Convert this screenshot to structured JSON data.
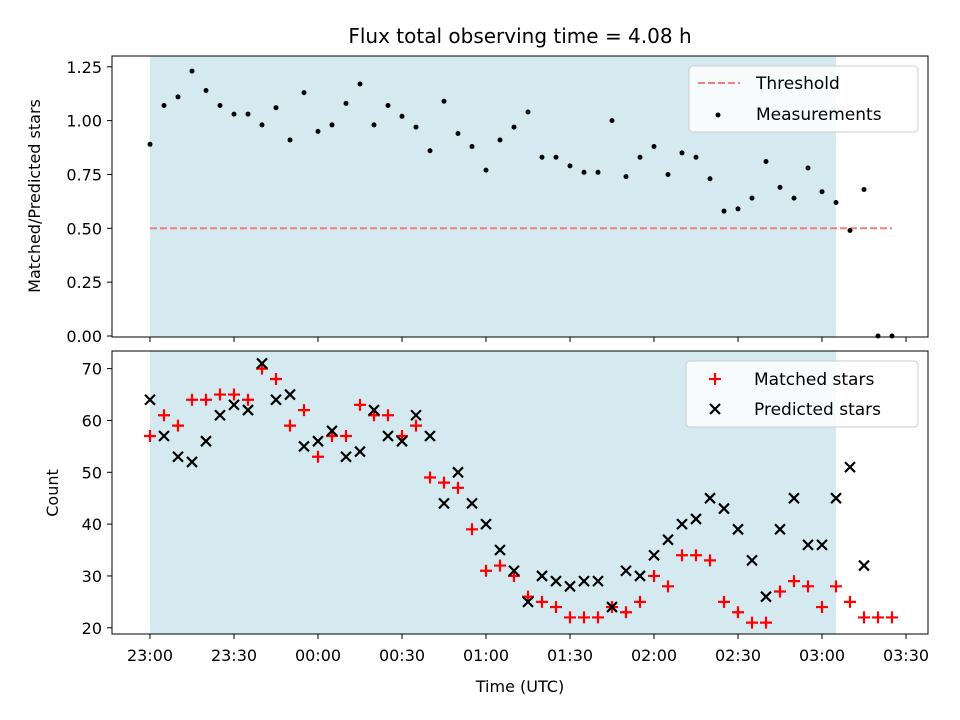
{
  "chart_data": [
    {
      "type": "scatter",
      "title": "Flux total observing time = 4.08 h",
      "ylabel": "Matched/Predicted stars",
      "xlabel": "",
      "ylim": [
        0,
        1.3
      ],
      "yticks": [
        0.0,
        0.25,
        0.5,
        0.75,
        1.0,
        1.25
      ],
      "ytick_labels": [
        "0.00",
        "0.25",
        "0.50",
        "0.75",
        "1.00",
        "1.25"
      ],
      "grid": false,
      "legend_loc": "upper right",
      "observing_window": {
        "start": "23:00",
        "end": "03:05",
        "color": "#d4eaf0"
      },
      "threshold": {
        "name": "Threshold",
        "value": 0.5,
        "x_start": "23:00",
        "x_end": "03:25",
        "color": "#f07f7f",
        "style": "dashed"
      },
      "series": [
        {
          "name": "Measurements",
          "marker": "dot",
          "color": "#000000",
          "x": [
            "23:00",
            "23:05",
            "23:10",
            "23:15",
            "23:20",
            "23:25",
            "23:30",
            "23:35",
            "23:40",
            "23:45",
            "23:50",
            "23:55",
            "00:00",
            "00:05",
            "00:10",
            "00:15",
            "00:20",
            "00:25",
            "00:30",
            "00:35",
            "00:40",
            "00:45",
            "00:50",
            "00:55",
            "01:00",
            "01:05",
            "01:10",
            "01:15",
            "01:20",
            "01:25",
            "01:30",
            "01:35",
            "01:40",
            "01:45",
            "01:50",
            "01:55",
            "02:00",
            "02:05",
            "02:10",
            "02:15",
            "02:20",
            "02:25",
            "02:30",
            "02:35",
            "02:40",
            "02:45",
            "02:50",
            "02:55",
            "03:00",
            "03:05",
            "03:10",
            "03:15",
            "03:20",
            "03:25"
          ],
          "y": [
            0.89,
            1.07,
            1.11,
            1.23,
            1.14,
            1.07,
            1.03,
            1.03,
            0.98,
            1.06,
            0.91,
            1.13,
            0.95,
            0.98,
            1.08,
            1.17,
            0.98,
            1.07,
            1.02,
            0.97,
            0.86,
            1.09,
            0.94,
            0.88,
            0.77,
            0.91,
            0.97,
            1.04,
            0.83,
            0.83,
            0.79,
            0.76,
            0.76,
            1.0,
            0.74,
            0.83,
            0.88,
            0.75,
            0.85,
            0.83,
            0.73,
            0.58,
            0.59,
            0.64,
            0.81,
            0.69,
            0.64,
            0.78,
            0.67,
            0.62,
            0.49,
            0.68,
            0.0,
            0.0
          ]
        }
      ]
    },
    {
      "type": "scatter",
      "title": "",
      "ylabel": "Count",
      "xlabel": "Time (UTC)",
      "ylim": [
        18.8,
        73.4
      ],
      "yticks": [
        20,
        30,
        40,
        50,
        60,
        70
      ],
      "ytick_labels": [
        "20",
        "30",
        "40",
        "50",
        "60",
        "70"
      ],
      "xticks": [
        "23:00",
        "23:30",
        "00:00",
        "00:30",
        "01:00",
        "01:30",
        "02:00",
        "02:30",
        "03:00",
        "03:30"
      ],
      "grid": false,
      "legend_loc": "upper right",
      "observing_window": {
        "start": "23:00",
        "end": "03:05",
        "color": "#d4eaf0"
      },
      "series": [
        {
          "name": "Matched stars",
          "marker": "+",
          "color": "#ff0000",
          "x": [
            "23:00",
            "23:05",
            "23:10",
            "23:15",
            "23:20",
            "23:25",
            "23:30",
            "23:35",
            "23:40",
            "23:45",
            "23:50",
            "23:55",
            "00:00",
            "00:05",
            "00:10",
            "00:15",
            "00:20",
            "00:25",
            "00:30",
            "00:35",
            "00:40",
            "00:45",
            "00:50",
            "00:55",
            "01:00",
            "01:05",
            "01:10",
            "01:15",
            "01:20",
            "01:25",
            "01:30",
            "01:35",
            "01:40",
            "01:45",
            "01:50",
            "01:55",
            "02:00",
            "02:05",
            "02:10",
            "02:15",
            "02:20",
            "02:25",
            "02:30",
            "02:35",
            "02:40",
            "02:45",
            "02:50",
            "02:55",
            "03:00",
            "03:05",
            "03:10",
            "03:15",
            "03:20",
            "03:25"
          ],
          "y": [
            57,
            61,
            59,
            64,
            64,
            65,
            65,
            64,
            70,
            68,
            59,
            62,
            53,
            57,
            57,
            63,
            61,
            61,
            57,
            59,
            49,
            48,
            47,
            39,
            31,
            32,
            30,
            26,
            25,
            24,
            22,
            22,
            22,
            24,
            23,
            25,
            30,
            28,
            34,
            34,
            33,
            25,
            23,
            21,
            21,
            27,
            29,
            28,
            24,
            28,
            25,
            22,
            22,
            22
          ]
        },
        {
          "name": "Predicted stars",
          "marker": "x",
          "color": "#000000",
          "x": [
            "23:00",
            "23:05",
            "23:10",
            "23:15",
            "23:20",
            "23:25",
            "23:30",
            "23:35",
            "23:40",
            "23:45",
            "23:50",
            "23:55",
            "00:00",
            "00:05",
            "00:10",
            "00:15",
            "00:20",
            "00:25",
            "00:30",
            "00:35",
            "00:40",
            "00:45",
            "00:50",
            "00:55",
            "01:00",
            "01:05",
            "01:10",
            "01:15",
            "01:20",
            "01:25",
            "01:30",
            "01:35",
            "01:40",
            "01:45",
            "01:50",
            "01:55",
            "02:00",
            "02:05",
            "02:10",
            "02:15",
            "02:20",
            "02:25",
            "02:30",
            "02:35",
            "02:40",
            "02:45",
            "02:50",
            "02:55",
            "03:00",
            "03:05",
            "03:10",
            "03:15"
          ],
          "y": [
            64,
            57,
            53,
            52,
            56,
            61,
            63,
            62,
            71,
            64,
            65,
            55,
            56,
            58,
            53,
            54,
            62,
            57,
            56,
            61,
            57,
            44,
            50,
            44,
            40,
            35,
            31,
            25,
            30,
            29,
            28,
            29,
            29,
            24,
            31,
            30,
            34,
            37,
            40,
            41,
            45,
            43,
            39,
            33,
            26,
            39,
            45,
            36,
            36,
            45,
            51,
            32
          ]
        }
      ]
    }
  ]
}
